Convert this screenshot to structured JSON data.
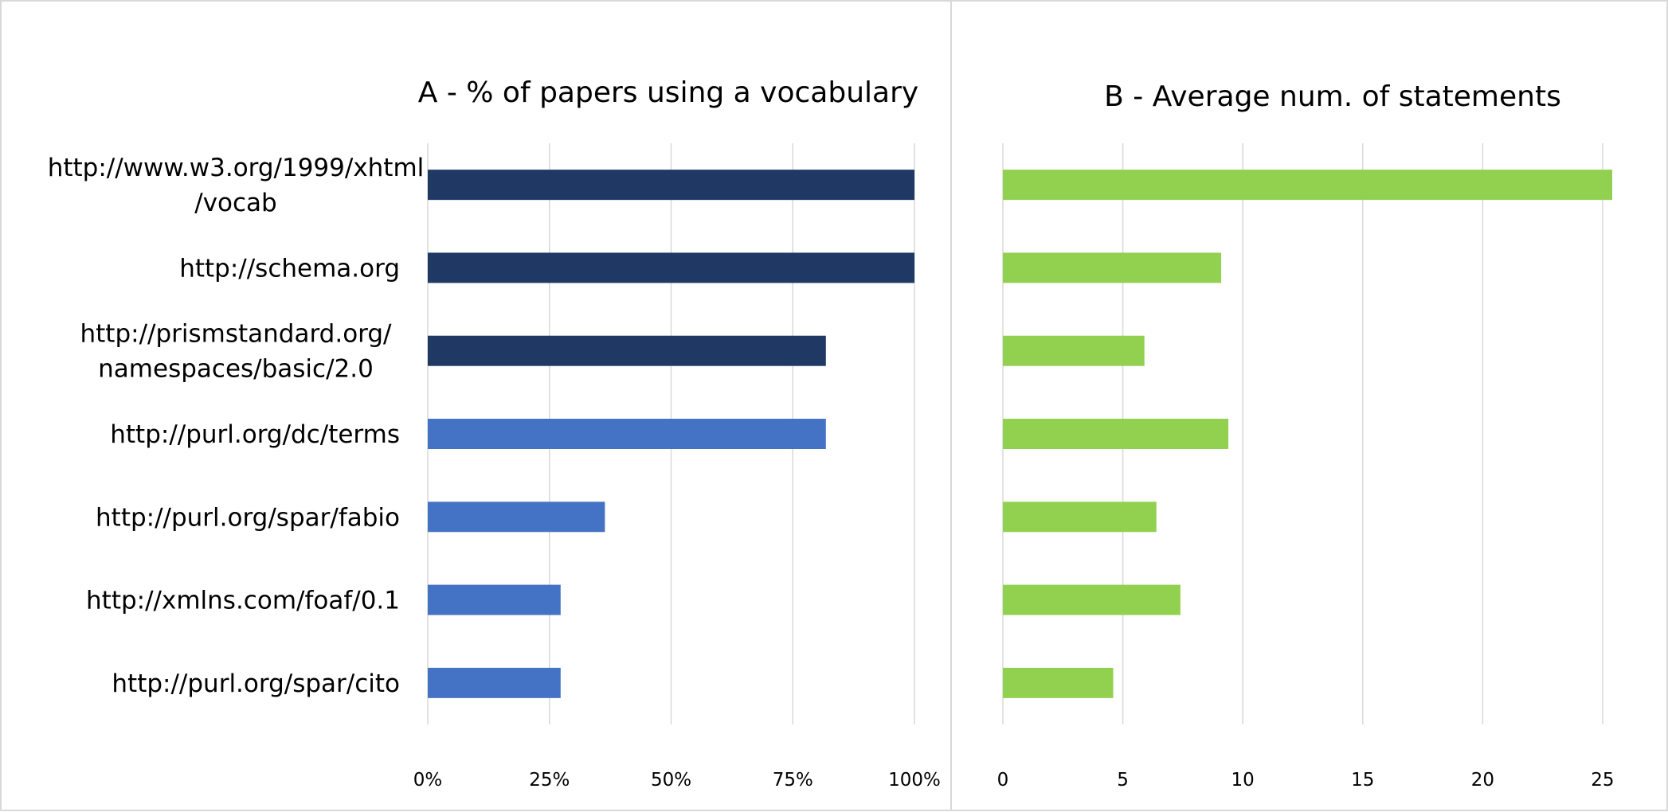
{
  "chart_data": [
    {
      "type": "bar",
      "orientation": "horizontal",
      "title": "A - % of papers using a vocabulary",
      "xlabel": "",
      "ylabel": "",
      "categories": [
        "http://www.w3.org/1999/xhtml/vocab",
        "http://schema.org",
        "http://prismstandard.org/namespaces/basic/2.0",
        "http://purl.org/dc/terms",
        "http://purl.org/spar/fabio",
        "http://xmlns.com/foaf/0.1",
        "http://purl.org/spar/cito"
      ],
      "category_lines": [
        [
          "http://www.w3.org/1999/xhtml",
          "/vocab"
        ],
        [
          "http://schema.org"
        ],
        [
          "http://prismstandard.org/",
          "namespaces/basic/2.0"
        ],
        [
          "http://purl.org/dc/terms"
        ],
        [
          "http://purl.org/spar/fabio"
        ],
        [
          "http://xmlns.com/foaf/0.1"
        ],
        [
          "http://purl.org/spar/cito"
        ]
      ],
      "values": [
        100,
        100,
        81.8,
        81.8,
        36.4,
        27.3,
        27.3
      ],
      "bar_colors": [
        "#1f3864",
        "#1f3864",
        "#1f3864",
        "#4472c4",
        "#4472c4",
        "#4472c4",
        "#4472c4"
      ],
      "xlim": [
        0,
        100
      ],
      "ticks": [
        0,
        25,
        50,
        75,
        100
      ],
      "tick_labels": [
        "0%",
        "25%",
        "50%",
        "75%",
        "100%"
      ],
      "grid": true,
      "legend": "none"
    },
    {
      "type": "bar",
      "orientation": "horizontal",
      "title": "B - Average num. of statements",
      "xlabel": "",
      "ylabel": "",
      "categories": [
        "http://www.w3.org/1999/xhtml/vocab",
        "http://schema.org",
        "http://prismstandard.org/namespaces/basic/2.0",
        "http://purl.org/dc/terms",
        "http://purl.org/spar/fabio",
        "http://xmlns.com/foaf/0.1",
        "http://purl.org/spar/cito"
      ],
      "values": [
        25.4,
        9.1,
        5.9,
        9.4,
        6.4,
        7.4,
        4.6
      ],
      "bar_color": "#92d050",
      "xlim": [
        0,
        25.5
      ],
      "ticks": [
        0,
        5,
        10,
        15,
        20,
        25
      ],
      "tick_labels": [
        "0",
        "5",
        "10",
        "15",
        "20",
        "25"
      ],
      "grid": true,
      "legend": "none"
    }
  ]
}
